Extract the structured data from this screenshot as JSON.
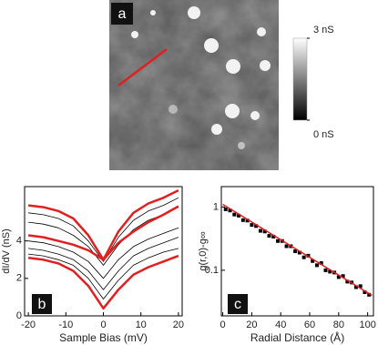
{
  "chart_data": [
    {
      "type": "image",
      "label": "a",
      "colorbar": {
        "lim": [
          0,
          3
        ],
        "ticks": [
          {
            "value": 3,
            "label": "3 nS"
          },
          {
            "value": 0,
            "label": "0 nS"
          }
        ]
      }
    },
    {
      "type": "line",
      "label": "b",
      "xlabel": "Sample Bias (mV)",
      "ylabel": "dI/dV (nS)",
      "x": [
        -20,
        -16,
        -12,
        -8,
        -4,
        0,
        4,
        8,
        12,
        16,
        20
      ],
      "xlim": [
        -21,
        21
      ],
      "xticks": [
        -20,
        -10,
        0,
        10,
        20
      ],
      "ylim": [
        0,
        6.9
      ],
      "yticks": [
        0,
        2,
        4
      ],
      "series": [
        {
          "color": "#000000",
          "width": 0.8,
          "values": [
            5.5,
            5.4,
            5.2,
            4.8,
            4.0,
            2.9,
            4.2,
            5.1,
            5.6,
            5.9,
            6.3
          ]
        },
        {
          "color": "#000000",
          "width": 0.8,
          "values": [
            5.0,
            4.9,
            4.7,
            4.3,
            3.7,
            2.7,
            3.8,
            4.6,
            5.1,
            5.4,
            5.8
          ]
        },
        {
          "color": "#000000",
          "width": 0.8,
          "values": [
            4.0,
            3.9,
            3.7,
            3.4,
            2.9,
            2.0,
            3.0,
            3.7,
            4.1,
            4.4,
            4.7
          ]
        },
        {
          "color": "#000000",
          "width": 0.8,
          "values": [
            3.6,
            3.5,
            3.3,
            3.0,
            2.4,
            1.4,
            2.4,
            3.2,
            3.6,
            3.9,
            4.2
          ]
        },
        {
          "color": "#000000",
          "width": 0.8,
          "values": [
            3.3,
            3.2,
            3.0,
            2.7,
            2.0,
            0.9,
            1.9,
            2.7,
            3.1,
            3.4,
            3.6
          ]
        },
        {
          "color": "#e02020",
          "width": 2.5,
          "values": [
            5.9,
            5.8,
            5.6,
            5.2,
            4.3,
            3.0,
            4.5,
            5.5,
            6.0,
            6.3,
            6.7
          ]
        },
        {
          "color": "#e02020",
          "width": 2.5,
          "values": [
            4.3,
            4.2,
            4.0,
            3.8,
            3.5,
            3.0,
            3.9,
            4.5,
            5.0,
            5.4,
            5.85
          ]
        },
        {
          "color": "#e02020",
          "width": 2.5,
          "values": [
            3.1,
            3.0,
            2.8,
            2.4,
            1.6,
            0.4,
            1.4,
            2.2,
            2.6,
            2.9,
            3.2
          ]
        }
      ]
    },
    {
      "type": "scatter",
      "label": "c",
      "xlabel": "Radial Distance (Å)",
      "ylabel": "g(r,0)-g∞",
      "xlim": [
        -1,
        104
      ],
      "xticks": [
        0,
        20,
        40,
        60,
        80,
        100
      ],
      "ylim": [
        0.019,
        2.1
      ],
      "yticks": [
        1,
        0.1
      ],
      "log_y": true,
      "series": [
        {
          "style": "points",
          "color": "#000000",
          "x": [
            2,
            5,
            8,
            11,
            14,
            17,
            20,
            23,
            26,
            29,
            32,
            35,
            38,
            41,
            44,
            47,
            50,
            53,
            56,
            59,
            62,
            65,
            68,
            71,
            74,
            77,
            80,
            83,
            86,
            89,
            92,
            95,
            98,
            101
          ],
          "values": [
            0.92,
            0.88,
            0.76,
            0.73,
            0.62,
            0.61,
            0.52,
            0.5,
            0.42,
            0.41,
            0.35,
            0.34,
            0.29,
            0.29,
            0.24,
            0.24,
            0.2,
            0.19,
            0.16,
            0.17,
            0.14,
            0.12,
            0.13,
            0.1,
            0.095,
            0.092,
            0.078,
            0.081,
            0.066,
            0.064,
            0.054,
            0.056,
            0.045,
            0.041
          ]
        },
        {
          "style": "line",
          "color": "#e02020",
          "x": [
            0,
            103
          ],
          "values": [
            1.1,
            0.04
          ]
        }
      ]
    }
  ]
}
